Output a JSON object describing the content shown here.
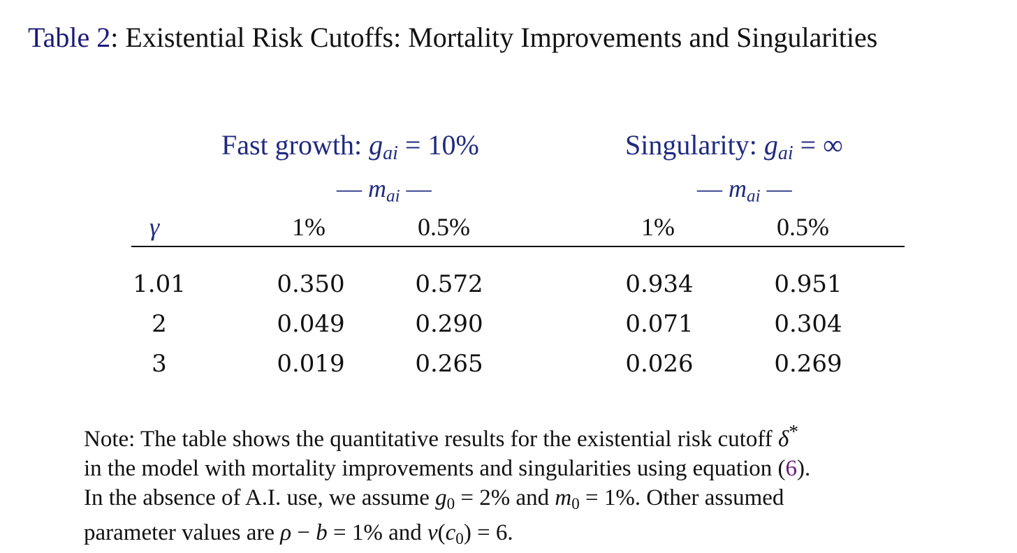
{
  "caption": {
    "label": "Table 2",
    "title": ": Existential Risk Cutoffs: Mortality Improvements and Singularities"
  },
  "groups": [
    {
      "title": "Fast growth:",
      "g_sym": "g",
      "g_sub": "ai",
      "eq": " = ",
      "value": "10%",
      "m_sym": "m",
      "m_sub": "ai",
      "dash": "—"
    },
    {
      "title": "Singularity:",
      "g_sym": "g",
      "g_sub": "ai",
      "eq": " = ",
      "value": "∞",
      "m_sym": "m",
      "m_sub": "ai",
      "dash": "—"
    }
  ],
  "columns": {
    "gamma": "γ",
    "headers": [
      "1%",
      "0.5%",
      "1%",
      "0.5%"
    ]
  },
  "rows": [
    {
      "gamma": "1.01",
      "values": [
        "0.350",
        "0.572",
        "0.934",
        "0.951"
      ]
    },
    {
      "gamma": "2",
      "values": [
        "0.049",
        "0.290",
        "0.071",
        "0.304"
      ]
    },
    {
      "gamma": "3",
      "values": [
        "0.019",
        "0.265",
        "0.026",
        "0.269"
      ]
    }
  ],
  "note": {
    "l1a": "Note:  The table shows the quantitative results for the existential risk cutoff ",
    "delta": "δ",
    "star": "*",
    "l2a": "in the model with mortality improvements and singularities using equation (",
    "ref": "6",
    "l2b": ").",
    "l3a": "In the absence of A.I. use, we assume ",
    "g0": "g",
    "g0sub": "0",
    "l3b": " = 2% and ",
    "m0": "m",
    "m0sub": "0",
    "l3c": " = 1%.  Other assumed",
    "l4a": "parameter values are ",
    "rho": "ρ",
    "l4b": " − ",
    "b": "b",
    "l4c": " = 1% and ",
    "v": "v",
    "l4d": "(",
    "c0": "c",
    "c0sub": "0",
    "l4e": ") = 6."
  }
}
